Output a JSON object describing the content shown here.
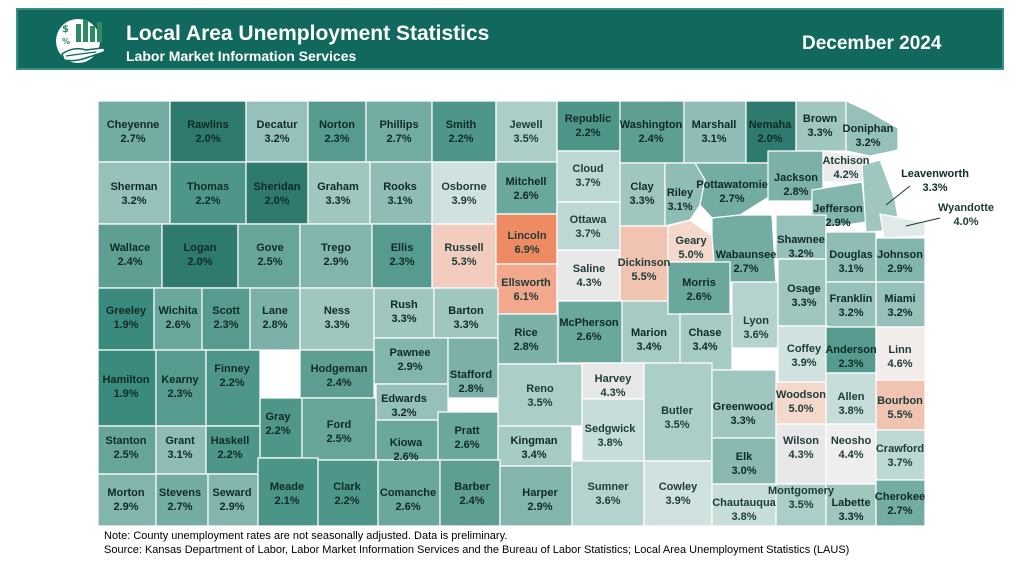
{
  "header": {
    "title": "Local Area Unemployment Statistics",
    "subtitle": "Labor Market Information Services",
    "date": "December 2024"
  },
  "colors": {
    "banner": "#11685c",
    "border": "#ffffff",
    "scale": {
      "1.9": "#3b8a7e",
      "2.0": "#2f7a6f",
      "2.1": "#4a9488",
      "2.2": "#4f968a",
      "2.3": "#579b90",
      "2.4": "#5e9e93",
      "2.5": "#67a59b",
      "2.6": "#6aa79d",
      "2.7": "#72aca2",
      "2.8": "#7bb1a8",
      "2.9": "#82b5ac",
      "3.0": "#89b9b1",
      "3.1": "#8fbdb5",
      "3.2": "#96c1ba",
      "3.3": "#9fc6bf",
      "3.4": "#a6cac4",
      "3.5": "#acceC8",
      "3.6": "#b5d3ce",
      "3.7": "#bdd8d4",
      "3.8": "#c6ddda",
      "3.9": "#cfe2df",
      "4.0": "#e0eae8",
      "4.2": "#ececec",
      "4.3": "#e8e8e8",
      "4.4": "#eeeeee",
      "4.6": "#f2ecea",
      "5.0": "#f4d8cc",
      "5.3": "#f2cdbf",
      "5.5": "#f1c3b1",
      "6.1": "#f2a88c",
      "6.9": "#ef8b63"
    }
  },
  "counties": [
    {
      "name": "Cheyenne",
      "rate": "2.7%",
      "v": "2.7"
    },
    {
      "name": "Rawlins",
      "rate": "2.0%",
      "v": "2.0"
    },
    {
      "name": "Decatur",
      "rate": "3.2%",
      "v": "3.2"
    },
    {
      "name": "Norton",
      "rate": "2.3%",
      "v": "2.3"
    },
    {
      "name": "Phillips",
      "rate": "2.7%",
      "v": "2.7"
    },
    {
      "name": "Smith",
      "rate": "2.2%",
      "v": "2.2"
    },
    {
      "name": "Jewell",
      "rate": "3.5%",
      "v": "3.5"
    },
    {
      "name": "Republic",
      "rate": "2.2%",
      "v": "2.2"
    },
    {
      "name": "Washington",
      "rate": "2.4%",
      "v": "2.4"
    },
    {
      "name": "Marshall",
      "rate": "3.1%",
      "v": "3.1"
    },
    {
      "name": "Nemaha",
      "rate": "2.0%",
      "v": "2.0"
    },
    {
      "name": "Brown",
      "rate": "3.3%",
      "v": "3.3"
    },
    {
      "name": "Doniphan",
      "rate": "3.2%",
      "v": "3.2"
    },
    {
      "name": "Sherman",
      "rate": "3.2%",
      "v": "3.2"
    },
    {
      "name": "Thomas",
      "rate": "2.2%",
      "v": "2.2"
    },
    {
      "name": "Sheridan",
      "rate": "2.0%",
      "v": "2.0"
    },
    {
      "name": "Graham",
      "rate": "3.3%",
      "v": "3.3"
    },
    {
      "name": "Rooks",
      "rate": "3.1%",
      "v": "3.1"
    },
    {
      "name": "Osborne",
      "rate": "3.9%",
      "v": "3.9"
    },
    {
      "name": "Mitchell",
      "rate": "2.6%",
      "v": "2.6"
    },
    {
      "name": "Cloud",
      "rate": "3.7%",
      "v": "3.7"
    },
    {
      "name": "Clay",
      "rate": "3.3%",
      "v": "3.3"
    },
    {
      "name": "Riley",
      "rate": "3.1%",
      "v": "3.1"
    },
    {
      "name": "Pottawatomie",
      "rate": "2.7%",
      "v": "2.7"
    },
    {
      "name": "Jackson",
      "rate": "2.8%",
      "v": "2.8"
    },
    {
      "name": "Atchison",
      "rate": "4.2%",
      "v": "4.2"
    },
    {
      "name": "Jefferson",
      "rate": "2.9%",
      "v": "2.9"
    },
    {
      "name": "Leavenworth",
      "rate": "3.3%",
      "v": "3.3"
    },
    {
      "name": "Wyandotte",
      "rate": "4.0%",
      "v": "4.0"
    },
    {
      "name": "Wallace",
      "rate": "2.4%",
      "v": "2.4"
    },
    {
      "name": "Logan",
      "rate": "2.0%",
      "v": "2.0"
    },
    {
      "name": "Gove",
      "rate": "2.5%",
      "v": "2.5"
    },
    {
      "name": "Trego",
      "rate": "2.9%",
      "v": "2.9"
    },
    {
      "name": "Ellis",
      "rate": "2.3%",
      "v": "2.3"
    },
    {
      "name": "Russell",
      "rate": "5.3%",
      "v": "5.3"
    },
    {
      "name": "Lincoln",
      "rate": "6.9%",
      "v": "6.9"
    },
    {
      "name": "Ottawa",
      "rate": "3.7%",
      "v": "3.7"
    },
    {
      "name": "Dickinson",
      "rate": "5.5%",
      "v": "5.5"
    },
    {
      "name": "Geary",
      "rate": "5.0%",
      "v": "5.0"
    },
    {
      "name": "Wabaunsee",
      "rate": "2.7%",
      "v": "2.7"
    },
    {
      "name": "Shawnee",
      "rate": "3.2%",
      "v": "3.2"
    },
    {
      "name": "Douglas",
      "rate": "3.1%",
      "v": "3.1"
    },
    {
      "name": "Johnson",
      "rate": "2.9%",
      "v": "2.9"
    },
    {
      "name": "Ellsworth",
      "rate": "6.1%",
      "v": "6.1"
    },
    {
      "name": "Saline",
      "rate": "4.3%",
      "v": "4.3"
    },
    {
      "name": "Greeley",
      "rate": "1.9%",
      "v": "1.9"
    },
    {
      "name": "Wichita",
      "rate": "2.6%",
      "v": "2.6"
    },
    {
      "name": "Scott",
      "rate": "2.3%",
      "v": "2.3"
    },
    {
      "name": "Lane",
      "rate": "2.8%",
      "v": "2.8"
    },
    {
      "name": "Ness",
      "rate": "3.3%",
      "v": "3.3"
    },
    {
      "name": "Rush",
      "rate": "3.3%",
      "v": "3.3"
    },
    {
      "name": "Barton",
      "rate": "3.3%",
      "v": "3.3"
    },
    {
      "name": "Rice",
      "rate": "2.8%",
      "v": "2.8"
    },
    {
      "name": "McPherson",
      "rate": "2.6%",
      "v": "2.6"
    },
    {
      "name": "Marion",
      "rate": "3.4%",
      "v": "3.4"
    },
    {
      "name": "Morris",
      "rate": "2.6%",
      "v": "2.6"
    },
    {
      "name": "Chase",
      "rate": "3.4%",
      "v": "3.4"
    },
    {
      "name": "Lyon",
      "rate": "3.6%",
      "v": "3.6"
    },
    {
      "name": "Osage",
      "rate": "3.3%",
      "v": "3.3"
    },
    {
      "name": "Franklin",
      "rate": "3.2%",
      "v": "3.2"
    },
    {
      "name": "Miami",
      "rate": "3.2%",
      "v": "3.2"
    },
    {
      "name": "Coffey",
      "rate": "3.9%",
      "v": "3.9"
    },
    {
      "name": "Anderson",
      "rate": "2.3%",
      "v": "2.3"
    },
    {
      "name": "Linn",
      "rate": "4.6%",
      "v": "4.6"
    },
    {
      "name": "Pawnee",
      "rate": "2.9%",
      "v": "2.9"
    },
    {
      "name": "Hamilton",
      "rate": "1.9%",
      "v": "1.9"
    },
    {
      "name": "Kearny",
      "rate": "2.3%",
      "v": "2.3"
    },
    {
      "name": "Finney",
      "rate": "2.2%",
      "v": "2.2"
    },
    {
      "name": "Hodgeman",
      "rate": "2.4%",
      "v": "2.4"
    },
    {
      "name": "Stafford",
      "rate": "2.8%",
      "v": "2.8"
    },
    {
      "name": "Reno",
      "rate": "3.5%",
      "v": "3.5"
    },
    {
      "name": "Harvey",
      "rate": "4.3%",
      "v": "4.3"
    },
    {
      "name": "Edwards",
      "rate": "3.2%",
      "v": "3.2"
    },
    {
      "name": "Gray",
      "rate": "2.2%",
      "v": "2.2"
    },
    {
      "name": "Ford",
      "rate": "2.5%",
      "v": "2.5"
    },
    {
      "name": "Butler",
      "rate": "3.5%",
      "v": "3.5"
    },
    {
      "name": "Greenwood",
      "rate": "3.3%",
      "v": "3.3"
    },
    {
      "name": "Woodson",
      "rate": "5.0%",
      "v": "5.0"
    },
    {
      "name": "Allen",
      "rate": "3.8%",
      "v": "3.8"
    },
    {
      "name": "Bourbon",
      "rate": "5.5%",
      "v": "5.5"
    },
    {
      "name": "Stanton",
      "rate": "2.5%",
      "v": "2.5"
    },
    {
      "name": "Grant",
      "rate": "3.1%",
      "v": "3.1"
    },
    {
      "name": "Haskell",
      "rate": "2.2%",
      "v": "2.2"
    },
    {
      "name": "Kiowa",
      "rate": "2.6%",
      "v": "2.6"
    },
    {
      "name": "Pratt",
      "rate": "2.6%",
      "v": "2.6"
    },
    {
      "name": "Kingman",
      "rate": "3.4%",
      "v": "3.4"
    },
    {
      "name": "Sedgwick",
      "rate": "3.8%",
      "v": "3.8"
    },
    {
      "name": "Elk",
      "rate": "3.0%",
      "v": "3.0"
    },
    {
      "name": "Wilson",
      "rate": "4.3%",
      "v": "4.3"
    },
    {
      "name": "Neosho",
      "rate": "4.4%",
      "v": "4.4"
    },
    {
      "name": "Crawford",
      "rate": "3.7%",
      "v": "3.7"
    },
    {
      "name": "Morton",
      "rate": "2.9%",
      "v": "2.9"
    },
    {
      "name": "Stevens",
      "rate": "2.7%",
      "v": "2.7"
    },
    {
      "name": "Seward",
      "rate": "2.9%",
      "v": "2.9"
    },
    {
      "name": "Meade",
      "rate": "2.1%",
      "v": "2.1"
    },
    {
      "name": "Clark",
      "rate": "2.2%",
      "v": "2.2"
    },
    {
      "name": "Comanche",
      "rate": "2.6%",
      "v": "2.6"
    },
    {
      "name": "Barber",
      "rate": "2.4%",
      "v": "2.4"
    },
    {
      "name": "Harper",
      "rate": "2.9%",
      "v": "2.9"
    },
    {
      "name": "Sumner",
      "rate": "3.6%",
      "v": "3.6"
    },
    {
      "name": "Cowley",
      "rate": "3.9%",
      "v": "3.9"
    },
    {
      "name": "Chautauqua",
      "rate": "3.8%",
      "v": "3.8"
    },
    {
      "name": "Montgomery",
      "rate": "3.5%",
      "v": "3.5"
    },
    {
      "name": "Labette",
      "rate": "3.3%",
      "v": "3.3"
    },
    {
      "name": "Cherokee",
      "rate": "2.7%",
      "v": "2.7"
    }
  ],
  "footer": {
    "note": "Note: County unemployment rates are not seasonally adjusted. Data is preliminary.",
    "source": "Source: Kansas Department of Labor, Labor Market Information Services and the Bureau of Labor Statistics; Local Area Unemployment Statistics (LAUS)"
  }
}
